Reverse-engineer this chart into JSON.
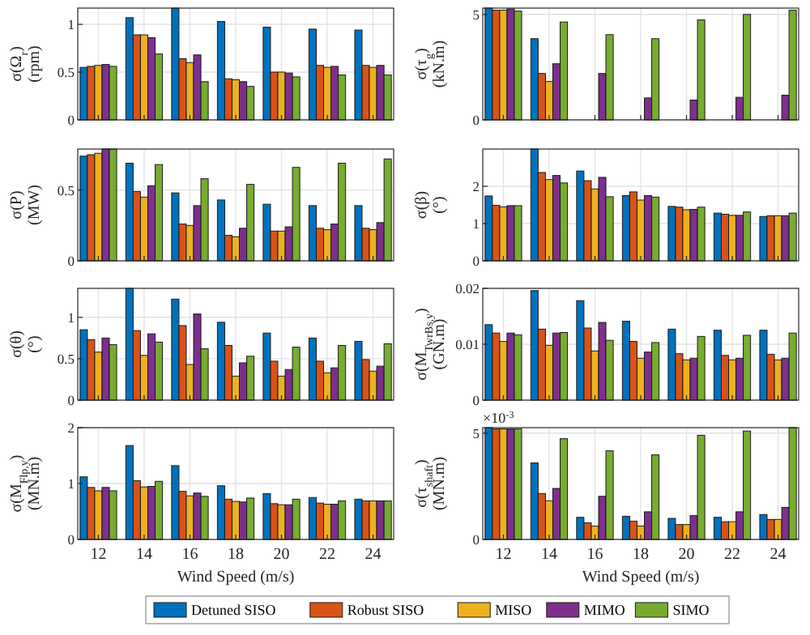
{
  "chart_data": [
    {
      "type": "bar",
      "categories": [
        "12",
        "14",
        "16",
        "18",
        "20",
        "22",
        "24"
      ],
      "ylabel": "σ(Ω$_{r}$) (rpm)",
      "ylim": [
        0,
        1.17
      ],
      "yticks": [
        0,
        0.5,
        1
      ],
      "grid": true,
      "tick_labels": "y",
      "legend": "bottom",
      "series": [
        {
          "name": "Detuned SISO",
          "color": "#0072bd",
          "values": [
            0.55,
            1.07,
            1.17,
            1.03,
            0.97,
            0.95,
            0.94
          ]
        },
        {
          "name": "Robust SISO",
          "color": "#d95319",
          "values": [
            0.56,
            0.89,
            0.64,
            0.43,
            0.5,
            0.57,
            0.57
          ]
        },
        {
          "name": "MISO",
          "color": "#edb120",
          "values": [
            0.57,
            0.89,
            0.6,
            0.42,
            0.5,
            0.55,
            0.55
          ]
        },
        {
          "name": "MIMO",
          "color": "#7e2f8e",
          "values": [
            0.58,
            0.86,
            0.68,
            0.4,
            0.49,
            0.56,
            0.57
          ]
        },
        {
          "name": "SIMO",
          "color": "#77ac30",
          "values": [
            0.56,
            0.69,
            0.4,
            0.35,
            0.45,
            0.47,
            0.47
          ]
        }
      ]
    },
    {
      "type": "bar",
      "categories": [
        "12",
        "14",
        "16",
        "18",
        "20",
        "22",
        "24"
      ],
      "ylabel": "σ(τ$_{g}$) (kN.m)",
      "ylim": [
        0,
        5.3
      ],
      "yticks": [
        0,
        5
      ],
      "grid": true,
      "tick_labels": "y",
      "legend": "bottom",
      "series": [
        {
          "name": "Detuned SISO",
          "color": "#0072bd",
          "values": [
            5.3,
            3.85,
            null,
            null,
            null,
            null,
            null
          ]
        },
        {
          "name": "Robust SISO",
          "color": "#d95319",
          "values": [
            5.2,
            2.2,
            null,
            null,
            null,
            null,
            null
          ]
        },
        {
          "name": "MISO",
          "color": "#edb120",
          "values": [
            5.2,
            1.82,
            null,
            null,
            null,
            null,
            null
          ]
        },
        {
          "name": "MIMO",
          "color": "#7e2f8e",
          "values": [
            5.26,
            2.66,
            2.2,
            1.04,
            0.94,
            1.07,
            1.17
          ]
        },
        {
          "name": "SIMO",
          "color": "#77ac30",
          "values": [
            5.16,
            4.64,
            4.04,
            3.85,
            4.74,
            5.0,
            5.2
          ]
        }
      ]
    },
    {
      "type": "bar",
      "categories": [
        "12",
        "14",
        "16",
        "18",
        "20",
        "22",
        "24"
      ],
      "ylabel": "σ(P) (MW)",
      "ylim": [
        0,
        0.79
      ],
      "yticks": [
        0,
        0.5
      ],
      "grid": true,
      "tick_labels": "y",
      "legend": "bottom",
      "series": [
        {
          "name": "Detuned SISO",
          "color": "#0072bd",
          "values": [
            0.74,
            0.69,
            0.48,
            0.43,
            0.4,
            0.39,
            0.39
          ]
        },
        {
          "name": "Robust SISO",
          "color": "#d95319",
          "values": [
            0.75,
            0.49,
            0.26,
            0.18,
            0.21,
            0.23,
            0.23
          ]
        },
        {
          "name": "MISO",
          "color": "#edb120",
          "values": [
            0.76,
            0.45,
            0.25,
            0.17,
            0.21,
            0.22,
            0.22
          ]
        },
        {
          "name": "MIMO",
          "color": "#7e2f8e",
          "values": [
            0.79,
            0.53,
            0.39,
            0.23,
            0.24,
            0.26,
            0.27
          ]
        },
        {
          "name": "SIMO",
          "color": "#77ac30",
          "values": [
            0.79,
            0.68,
            0.58,
            0.54,
            0.66,
            0.69,
            0.72
          ]
        }
      ]
    },
    {
      "type": "bar",
      "categories": [
        "12",
        "14",
        "16",
        "18",
        "20",
        "22",
        "24"
      ],
      "ylabel": "σ(β) (°)",
      "ylim": [
        0,
        3.0
      ],
      "yticks": [
        0,
        1,
        2
      ],
      "grid": true,
      "tick_labels": "y",
      "legend": "bottom",
      "series": [
        {
          "name": "Detuned SISO",
          "color": "#0072bd",
          "values": [
            1.74,
            3.0,
            2.41,
            1.75,
            1.46,
            1.28,
            1.19
          ]
        },
        {
          "name": "Robust SISO",
          "color": "#d95319",
          "values": [
            1.49,
            2.37,
            2.15,
            1.85,
            1.44,
            1.25,
            1.21
          ]
        },
        {
          "name": "MISO",
          "color": "#edb120",
          "values": [
            1.45,
            2.18,
            1.93,
            1.63,
            1.37,
            1.22,
            1.21
          ]
        },
        {
          "name": "MIMO",
          "color": "#7e2f8e",
          "values": [
            1.48,
            2.29,
            2.24,
            1.75,
            1.38,
            1.22,
            1.21
          ]
        },
        {
          "name": "SIMO",
          "color": "#77ac30",
          "values": [
            1.48,
            2.09,
            1.72,
            1.71,
            1.44,
            1.31,
            1.28
          ]
        }
      ]
    },
    {
      "type": "bar",
      "categories": [
        "12",
        "14",
        "16",
        "18",
        "20",
        "22",
        "24"
      ],
      "ylabel": "σ(θ) (°)",
      "ylim": [
        0,
        1.35
      ],
      "yticks": [
        0,
        0.5,
        1
      ],
      "grid": true,
      "tick_labels": "y",
      "legend": "bottom",
      "series": [
        {
          "name": "Detuned SISO",
          "color": "#0072bd",
          "values": [
            0.85,
            1.35,
            1.22,
            0.94,
            0.81,
            0.75,
            0.71
          ]
        },
        {
          "name": "Robust SISO",
          "color": "#d95319",
          "values": [
            0.73,
            0.84,
            0.9,
            0.66,
            0.47,
            0.47,
            0.49
          ]
        },
        {
          "name": "MISO",
          "color": "#edb120",
          "values": [
            0.58,
            0.54,
            0.43,
            0.29,
            0.29,
            0.33,
            0.35
          ]
        },
        {
          "name": "MIMO",
          "color": "#7e2f8e",
          "values": [
            0.75,
            0.8,
            1.04,
            0.45,
            0.37,
            0.39,
            0.41
          ]
        },
        {
          "name": "SIMO",
          "color": "#77ac30",
          "values": [
            0.67,
            0.7,
            0.62,
            0.53,
            0.64,
            0.66,
            0.68
          ]
        }
      ]
    },
    {
      "type": "bar",
      "categories": [
        "12",
        "14",
        "16",
        "18",
        "20",
        "22",
        "24"
      ],
      "ylabel": "σ(M$_{TwrBs,y}$) (GN.m)",
      "ylim": [
        0,
        0.02
      ],
      "yticks": [
        0,
        0.01,
        0.02
      ],
      "grid": true,
      "tick_labels": "y",
      "legend": "bottom",
      "series": [
        {
          "name": "Detuned SISO",
          "color": "#0072bd",
          "values": [
            0.0135,
            0.0196,
            0.0178,
            0.0141,
            0.0127,
            0.0125,
            0.0125
          ]
        },
        {
          "name": "Robust SISO",
          "color": "#d95319",
          "values": [
            0.012,
            0.0127,
            0.0129,
            0.0105,
            0.0083,
            0.008,
            0.0082
          ]
        },
        {
          "name": "MISO",
          "color": "#edb120",
          "values": [
            0.0105,
            0.0098,
            0.0088,
            0.0075,
            0.0072,
            0.0072,
            0.0072
          ]
        },
        {
          "name": "MIMO",
          "color": "#7e2f8e",
          "values": [
            0.012,
            0.012,
            0.0139,
            0.0086,
            0.0075,
            0.0075,
            0.0075
          ]
        },
        {
          "name": "SIMO",
          "color": "#77ac30",
          "values": [
            0.0117,
            0.0121,
            0.0107,
            0.0103,
            0.0114,
            0.0116,
            0.012
          ]
        }
      ]
    },
    {
      "type": "bar",
      "categories": [
        "12",
        "14",
        "16",
        "18",
        "20",
        "22",
        "24"
      ],
      "xlabel": "Wind Speed (m/s)",
      "ylabel": "σ(M$_{Flp,y}$) (MN.m)",
      "ylim": [
        0,
        2
      ],
      "yticks": [
        0,
        1,
        2
      ],
      "grid": true,
      "legend": "bottom",
      "series": [
        {
          "name": "Detuned SISO",
          "color": "#0072bd",
          "values": [
            1.12,
            1.68,
            1.32,
            0.96,
            0.82,
            0.75,
            0.72
          ]
        },
        {
          "name": "Robust SISO",
          "color": "#d95319",
          "values": [
            0.93,
            1.05,
            0.86,
            0.72,
            0.64,
            0.65,
            0.69
          ]
        },
        {
          "name": "MISO",
          "color": "#edb120",
          "values": [
            0.87,
            0.94,
            0.78,
            0.68,
            0.62,
            0.63,
            0.69
          ]
        },
        {
          "name": "MIMO",
          "color": "#7e2f8e",
          "values": [
            0.93,
            0.95,
            0.83,
            0.67,
            0.62,
            0.63,
            0.69
          ]
        },
        {
          "name": "SIMO",
          "color": "#77ac30",
          "values": [
            0.87,
            1.04,
            0.77,
            0.74,
            0.72,
            0.69,
            0.69
          ]
        }
      ]
    },
    {
      "type": "bar",
      "categories": [
        "12",
        "14",
        "16",
        "18",
        "20",
        "22",
        "24"
      ],
      "xlabel": "Wind Speed (m/s)",
      "ylabel": "σ(τ$_{shaft}$) (MN.m)",
      "ylim": [
        0,
        5.26
      ],
      "yticks": [
        0,
        5
      ],
      "annotations": [
        "×10$^{-3}$"
      ],
      "grid": true,
      "legend": "bottom",
      "series": [
        {
          "name": "Detuned SISO",
          "color": "#0072bd",
          "values": [
            5.26,
            3.6,
            1.04,
            1.09,
            0.99,
            1.04,
            1.17
          ]
        },
        {
          "name": "Robust SISO",
          "color": "#d95319",
          "values": [
            5.2,
            2.16,
            0.78,
            0.86,
            0.7,
            0.83,
            0.94
          ]
        },
        {
          "name": "MISO",
          "color": "#edb120",
          "values": [
            5.2,
            1.82,
            0.63,
            0.63,
            0.7,
            0.83,
            0.94
          ]
        },
        {
          "name": "MIMO",
          "color": "#7e2f8e",
          "values": [
            5.2,
            2.4,
            2.03,
            1.3,
            1.12,
            1.3,
            1.51
          ]
        },
        {
          "name": "SIMO",
          "color": "#77ac30",
          "values": [
            5.2,
            4.74,
            4.17,
            3.98,
            4.9,
            5.1,
            5.26
          ]
        }
      ]
    }
  ]
}
